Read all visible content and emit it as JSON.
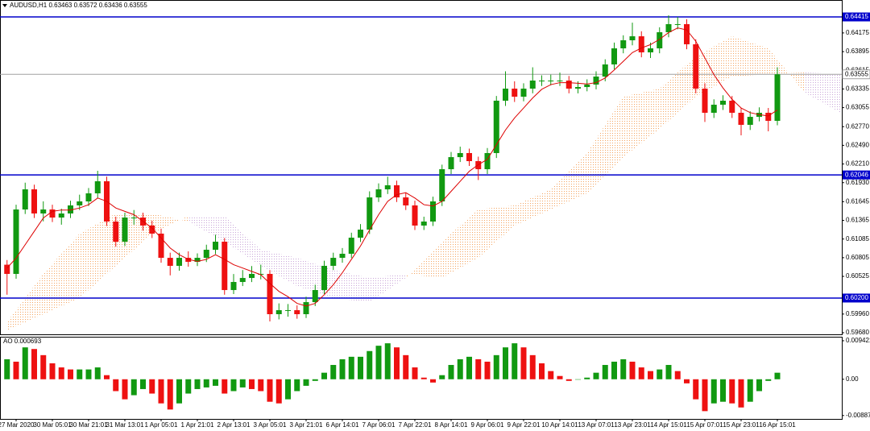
{
  "chart_data": [
    {
      "type": "candlestick",
      "title": "AUDUSD,H1  0.63463 0.63572 0.63436 0.63555",
      "categories": [
        null,
        "27 Mar 2020",
        null,
        null,
        null,
        "30 Mar 05:01",
        null,
        null,
        null,
        "30 Mar 21:01",
        null,
        null,
        null,
        "31 Mar 13:01",
        null,
        null,
        null,
        "1 Apr 05:01",
        null,
        null,
        null,
        "1 Apr 21:01",
        null,
        null,
        null,
        "2 Apr 13:01",
        null,
        null,
        null,
        "3 Apr 05:01",
        null,
        null,
        null,
        "3 Apr 21:01",
        null,
        null,
        null,
        "6 Apr 14:01",
        null,
        null,
        null,
        "7 Apr 06:01",
        null,
        null,
        null,
        "7 Apr 22:01",
        null,
        null,
        null,
        "8 Apr 14:01",
        null,
        null,
        null,
        "9 Apr 06:01",
        null,
        null,
        null,
        "9 Apr 22:01",
        null,
        null,
        null,
        "10 Apr 14:01",
        null,
        null,
        null,
        "13 Apr 07:01",
        null,
        null,
        null,
        "13 Apr 23:01",
        null,
        null,
        null,
        "14 Apr 15:01",
        null,
        null,
        null,
        "15 Apr 07:01",
        null,
        null,
        null,
        "15 Apr 23:01",
        null,
        null,
        null,
        "16 Apr 15:01"
      ],
      "open": [
        0.607,
        0.60562,
        0.61528,
        0.6183,
        0.61468,
        0.61528,
        0.61407,
        0.61468,
        0.61589,
        0.61649,
        0.6177,
        0.61951,
        0.61347,
        0.61045,
        0.61407,
        0.61407,
        0.61287,
        0.61166,
        0.60803,
        0.60683,
        0.60803,
        0.60743,
        0.60803,
        0.60924,
        0.61045,
        0.6032,
        0.60441,
        0.60501,
        0.60562,
        0.60562,
        0.59958,
        0.60018,
        0.60018,
        0.59958,
        0.60139,
        0.6032,
        0.60683,
        0.60803,
        0.60864,
        0.61105,
        0.61226,
        0.61709,
        0.6183,
        0.61891,
        0.61709,
        0.61589,
        0.61287,
        0.61347,
        0.61649,
        0.62132,
        0.62313,
        0.62374,
        0.62253,
        0.62132,
        0.62374,
        0.63159,
        0.6334,
        0.63219,
        0.6334,
        0.63461,
        0.63461,
        0.63461,
        0.63461,
        0.6334,
        0.63364,
        0.63401,
        0.63521,
        0.63703,
        0.63944,
        0.64065,
        0.64125,
        0.63884,
        0.63944,
        0.64186,
        0.64307,
        0.64307,
        0.64005,
        0.6334,
        0.62978,
        0.63099,
        0.63159,
        0.62978,
        0.62797,
        0.62917,
        0.62978,
        0.62857
      ],
      "high": [
        0.6077,
        0.616,
        0.6193,
        0.619,
        0.6165,
        0.616,
        0.6154,
        0.6166,
        0.6175,
        0.6185,
        0.62108,
        0.6202,
        0.6142,
        0.6148,
        0.6152,
        0.6148,
        0.6136,
        0.6124,
        0.6088,
        0.6088,
        0.609,
        0.6087,
        0.61,
        0.6115,
        0.611,
        0.6056,
        0.6062,
        0.6068,
        0.607,
        0.6062,
        0.6012,
        0.6011,
        0.6009,
        0.6022,
        0.604,
        0.6076,
        0.6088,
        0.6095,
        0.6118,
        0.6131,
        0.618,
        0.6192,
        0.6202,
        0.6196,
        0.6178,
        0.6166,
        0.6142,
        0.6172,
        0.622,
        0.6239,
        0.6247,
        0.6244,
        0.6232,
        0.6245,
        0.6323,
        0.636,
        0.6345,
        0.6342,
        0.6366,
        0.6354,
        0.6355,
        0.6358,
        0.6353,
        0.6345,
        0.6348,
        0.636,
        0.6378,
        0.6403,
        0.6414,
        0.6433,
        0.642,
        0.6403,
        0.6426,
        0.6444,
        0.64415,
        0.6438,
        0.6408,
        0.6342,
        0.6318,
        0.6324,
        0.6323,
        0.6305,
        0.63,
        0.6306,
        0.6305,
        0.6366
      ],
      "low": [
        0.6025,
        0.6049,
        0.6146,
        0.614,
        0.6135,
        0.6134,
        0.613,
        0.614,
        0.6152,
        0.6158,
        0.617,
        0.6128,
        0.6097,
        0.6098,
        0.613,
        0.6121,
        0.611,
        0.6073,
        0.6054,
        0.6061,
        0.6067,
        0.6068,
        0.6074,
        0.6086,
        0.6025,
        0.6026,
        0.6038,
        0.6044,
        0.6048,
        0.5985,
        0.5988,
        0.5992,
        0.5989,
        0.599,
        0.6008,
        0.6026,
        0.6062,
        0.6073,
        0.608,
        0.6104,
        0.6116,
        0.6164,
        0.6176,
        0.6164,
        0.6152,
        0.6122,
        0.6122,
        0.6128,
        0.6158,
        0.6206,
        0.6224,
        0.6218,
        0.6197,
        0.6206,
        0.623,
        0.6308,
        0.6314,
        0.6315,
        0.6327,
        0.6338,
        0.6339,
        0.6338,
        0.6327,
        0.6327,
        0.633,
        0.6333,
        0.6345,
        0.6363,
        0.6387,
        0.6399,
        0.6381,
        0.638,
        0.6387,
        0.6411,
        0.6423,
        0.6393,
        0.6327,
        0.6284,
        0.629,
        0.6302,
        0.629,
        0.6264,
        0.6272,
        0.6285,
        0.627,
        0.6279
      ],
      "close": [
        0.60562,
        0.61528,
        0.6183,
        0.61468,
        0.61528,
        0.61407,
        0.61468,
        0.61589,
        0.61649,
        0.6177,
        0.61951,
        0.61347,
        0.61045,
        0.61407,
        0.61407,
        0.61287,
        0.61166,
        0.60803,
        0.60683,
        0.60803,
        0.60743,
        0.60803,
        0.60924,
        0.61045,
        0.6032,
        0.60441,
        0.60501,
        0.60562,
        0.60562,
        0.59958,
        0.60018,
        0.60018,
        0.59958,
        0.60139,
        0.6032,
        0.60683,
        0.60803,
        0.60864,
        0.61105,
        0.61226,
        0.61709,
        0.6183,
        0.61891,
        0.61709,
        0.61589,
        0.61287,
        0.61347,
        0.61649,
        0.62132,
        0.62313,
        0.62374,
        0.62253,
        0.62132,
        0.62374,
        0.63159,
        0.6334,
        0.63219,
        0.6334,
        0.63461,
        0.63461,
        0.63461,
        0.63461,
        0.6334,
        0.63364,
        0.63401,
        0.63521,
        0.63703,
        0.63944,
        0.64065,
        0.64125,
        0.63884,
        0.63944,
        0.64186,
        0.64307,
        0.64307,
        0.64005,
        0.6334,
        0.62978,
        0.63099,
        0.63159,
        0.62978,
        0.62797,
        0.62917,
        0.62978,
        0.62857,
        0.63555
      ],
      "up_color": "#119911",
      "down_color": "#ee1111",
      "moving_average": {
        "color": "#dd0000",
        "values": [
          0.6065,
          0.608,
          0.61,
          0.612,
          0.614,
          0.615,
          0.6152,
          0.6152,
          0.6155,
          0.616,
          0.617,
          0.6165,
          0.6155,
          0.615,
          0.6145,
          0.6135,
          0.6125,
          0.611,
          0.6095,
          0.6085,
          0.6078,
          0.6075,
          0.6078,
          0.6085,
          0.6078,
          0.607,
          0.6065,
          0.606,
          0.6055,
          0.6042,
          0.603,
          0.6022,
          0.6012,
          0.6008,
          0.6012,
          0.6025,
          0.604,
          0.6058,
          0.6078,
          0.6098,
          0.6122,
          0.6145,
          0.6165,
          0.6175,
          0.6178,
          0.617,
          0.616,
          0.6158,
          0.6165,
          0.618,
          0.6195,
          0.621,
          0.622,
          0.6228,
          0.625,
          0.6272,
          0.629,
          0.6305,
          0.632,
          0.6333,
          0.634,
          0.6343,
          0.6343,
          0.6342,
          0.6341,
          0.6343,
          0.635,
          0.6362,
          0.6375,
          0.6388,
          0.6395,
          0.64,
          0.6408,
          0.6418,
          0.6425,
          0.6422,
          0.6405,
          0.638,
          0.6355,
          0.6335,
          0.6318,
          0.6305,
          0.6298,
          0.6295,
          0.6293,
          0.6302
        ]
      },
      "cloud": {
        "up_color": "#f4a460",
        "down_color": "#c9a6d8",
        "x": [
          0,
          4,
          8,
          12,
          16,
          20,
          24,
          28,
          32,
          36,
          40,
          44,
          48,
          52,
          56,
          60,
          64,
          68,
          72,
          76,
          80,
          84,
          88,
          92
        ],
        "span_a": [
          0.59837,
          0.60562,
          0.61166,
          0.61468,
          0.61468,
          0.61347,
          0.61045,
          0.60683,
          0.6038,
          0.602,
          0.60139,
          0.60501,
          0.61045,
          0.61528,
          0.61589,
          0.6183,
          0.62374,
          0.63219,
          0.6334,
          0.63823,
          0.64125,
          0.63944,
          0.6328,
          0.62978
        ],
        "span_b": [
          0.59716,
          0.59958,
          0.602,
          0.60683,
          0.61166,
          0.61431,
          0.61431,
          0.60924,
          0.60803,
          0.60622,
          0.60501,
          0.60562,
          0.60501,
          0.60803,
          0.61287,
          0.61528,
          0.6177,
          0.62313,
          0.62736,
          0.63219,
          0.63521,
          0.63558,
          0.63582,
          0.63558
        ]
      },
      "levels": [
        {
          "value": 0.64415,
          "color": "#0000cc"
        },
        {
          "value": 0.62046,
          "color": "#0000cc"
        },
        {
          "value": 0.602,
          "label": "0.60200",
          "color": "#0000cc"
        }
      ],
      "current_price": {
        "value": 0.63555,
        "color": "#a0a0a0"
      },
      "ylim": [
        0.59656,
        0.64669
      ],
      "yticks": [
        0.64175,
        0.63895,
        0.63615,
        0.63335,
        0.63055,
        {
          "value": 0.6277,
          "label": "0.62770"
        },
        {
          "value": 0.6249,
          "label": "0.62490"
        },
        {
          "value": 0.6221,
          "label": "0.62210"
        },
        {
          "value": 0.6193,
          "label": "0.61930"
        },
        0.61645,
        0.61365,
        0.61085,
        0.60805,
        0.60525,
        {
          "value": 0.5996,
          "label": "0.59960"
        },
        {
          "value": 0.5968,
          "label": "0.59680"
        }
      ],
      "grid": false
    },
    {
      "type": "histogram",
      "title": "AO 0.000693",
      "up_color": "#119911",
      "down_color": "#ee1111",
      "values": [
        0.0049,
        0.0043,
        0.0078,
        0.0074,
        0.0059,
        0.0039,
        0.0029,
        0.0024,
        0.0024,
        0.0024,
        0.0029,
        0.001,
        -0.0029,
        -0.0049,
        -0.0039,
        -0.0024,
        -0.0035,
        -0.0059,
        -0.0074,
        -0.0059,
        -0.0035,
        -0.0024,
        -0.002,
        -0.0016,
        -0.0035,
        -0.0029,
        -0.002,
        -0.0024,
        -0.0029,
        -0.0055,
        -0.0059,
        -0.0049,
        -0.0029,
        -0.0016,
        -0.0004,
        0.0016,
        0.0035,
        0.0049,
        0.0055,
        0.0055,
        0.0069,
        0.0082,
        0.0088,
        0.0078,
        0.0059,
        0.0029,
        0.0004,
        -0.0008,
        0.001,
        0.0035,
        0.0049,
        0.0055,
        0.0049,
        0.0043,
        0.0059,
        0.0078,
        0.0088,
        0.0078,
        0.0059,
        0.0039,
        0.002,
        0.0008,
        -0.0004,
        0,
        0.0004,
        0.0016,
        0.0035,
        0.0043,
        0.0049,
        0.0043,
        0.0029,
        0.002,
        0.0024,
        0.0035,
        0.002,
        -0.001,
        -0.0049,
        -0.0078,
        -0.0059,
        -0.0055,
        -0.0059,
        -0.0069,
        -0.0055,
        -0.0029,
        -0.0004,
        0.0016
      ],
      "ylim": [
        -0.0097,
        0.0104
      ],
      "yticks": [
        0.009421,
        {
          "value": 0,
          "label": "0.00"
        },
        -0.00887
      ]
    }
  ]
}
